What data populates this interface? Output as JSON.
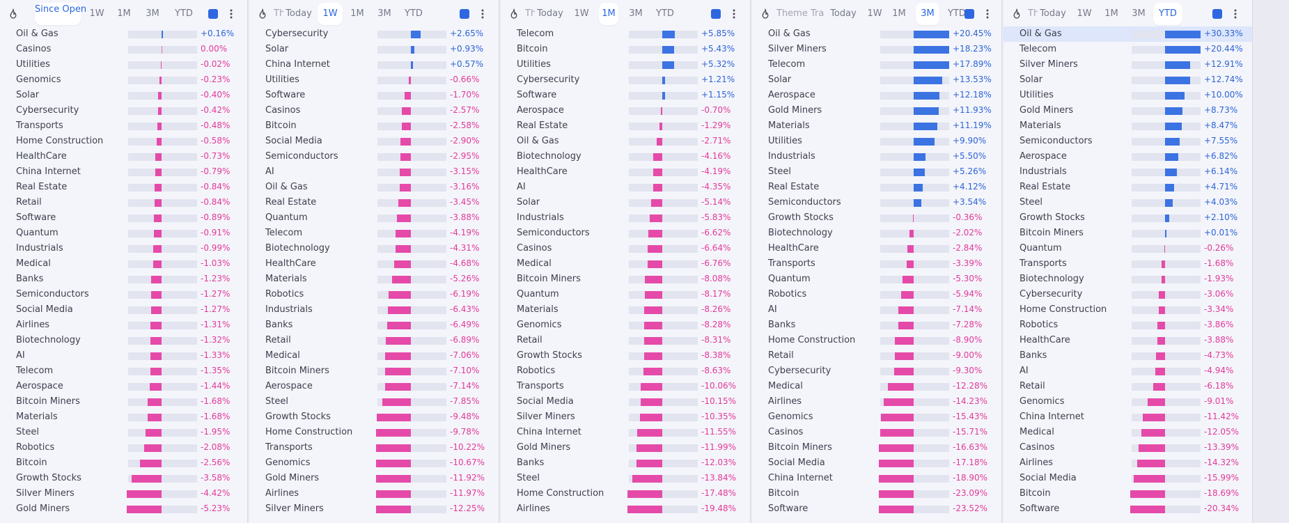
{
  "colors": {
    "positive": "#3b73e2",
    "negative": "#e54aa9",
    "accent": "#2e67e0"
  },
  "panels": [
    {
      "title": "",
      "active": "Since Open",
      "tabs": [
        "Since Open",
        "1W",
        "1M",
        "3M",
        "YTD"
      ],
      "rows": [
        [
          "Oil & Gas",
          0.16
        ],
        [
          "Casinos",
          0.0
        ],
        [
          "Utilities",
          -0.02
        ],
        [
          "Genomics",
          -0.23
        ],
        [
          "Solar",
          -0.4
        ],
        [
          "Cybersecurity",
          -0.42
        ],
        [
          "Transports",
          -0.48
        ],
        [
          "Home Construction",
          -0.58
        ],
        [
          "HealthCare",
          -0.73
        ],
        [
          "China Internet",
          -0.79
        ],
        [
          "Real Estate",
          -0.84
        ],
        [
          "Retail",
          -0.84
        ],
        [
          "Software",
          -0.89
        ],
        [
          "Quantum",
          -0.91
        ],
        [
          "Industrials",
          -0.99
        ],
        [
          "Medical",
          -1.03
        ],
        [
          "Banks",
          -1.23
        ],
        [
          "Semiconductors",
          -1.27
        ],
        [
          "Social Media",
          -1.27
        ],
        [
          "Airlines",
          -1.31
        ],
        [
          "Biotechnology",
          -1.32
        ],
        [
          "AI",
          -1.33
        ],
        [
          "Telecom",
          -1.35
        ],
        [
          "Aerospace",
          -1.44
        ],
        [
          "Bitcoin Miners",
          -1.68
        ],
        [
          "Materials",
          -1.68
        ],
        [
          "Steel",
          -1.95
        ],
        [
          "Robotics",
          -2.08
        ],
        [
          "Bitcoin",
          -2.56
        ],
        [
          "Growth Stocks",
          -3.58
        ],
        [
          "Silver Miners",
          -4.42
        ],
        [
          "Gold Miners",
          -5.23
        ]
      ]
    },
    {
      "title": "Th",
      "active": "1W",
      "tabs": [
        "Today",
        "1W",
        "1M",
        "3M",
        "YTD"
      ],
      "rows": [
        [
          "Cybersecurity",
          2.65
        ],
        [
          "Solar",
          0.93
        ],
        [
          "China Internet",
          0.57
        ],
        [
          "Utilities",
          -0.66
        ],
        [
          "Software",
          -1.7
        ],
        [
          "Casinos",
          -2.57
        ],
        [
          "Bitcoin",
          -2.58
        ],
        [
          "Social Media",
          -2.9
        ],
        [
          "Semiconductors",
          -2.95
        ],
        [
          "AI",
          -3.15
        ],
        [
          "Oil & Gas",
          -3.16
        ],
        [
          "Real Estate",
          -3.45
        ],
        [
          "Quantum",
          -3.88
        ],
        [
          "Telecom",
          -4.19
        ],
        [
          "Biotechnology",
          -4.31
        ],
        [
          "HealthCare",
          -4.68
        ],
        [
          "Materials",
          -5.26
        ],
        [
          "Robotics",
          -6.19
        ],
        [
          "Industrials",
          -6.43
        ],
        [
          "Banks",
          -6.49
        ],
        [
          "Retail",
          -6.89
        ],
        [
          "Medical",
          -7.06
        ],
        [
          "Bitcoin Miners",
          -7.1
        ],
        [
          "Aerospace",
          -7.14
        ],
        [
          "Steel",
          -7.85
        ],
        [
          "Growth Stocks",
          -9.48
        ],
        [
          "Home Construction",
          -9.78
        ],
        [
          "Transports",
          -10.22
        ],
        [
          "Genomics",
          -10.67
        ],
        [
          "Gold Miners",
          -11.92
        ],
        [
          "Airlines",
          -11.97
        ],
        [
          "Silver Miners",
          -12.25
        ]
      ]
    },
    {
      "title": "Th",
      "active": "1M",
      "tabs": [
        "Today",
        "1W",
        "1M",
        "3M",
        "YTD"
      ],
      "rows": [
        [
          "Telecom",
          5.85
        ],
        [
          "Bitcoin",
          5.43
        ],
        [
          "Utilities",
          5.32
        ],
        [
          "Cybersecurity",
          1.21
        ],
        [
          "Software",
          1.15
        ],
        [
          "Aerospace",
          -0.7
        ],
        [
          "Real Estate",
          -1.29
        ],
        [
          "Oil & Gas",
          -2.71
        ],
        [
          "Biotechnology",
          -4.16
        ],
        [
          "HealthCare",
          -4.19
        ],
        [
          "AI",
          -4.35
        ],
        [
          "Solar",
          -5.14
        ],
        [
          "Industrials",
          -5.83
        ],
        [
          "Semiconductors",
          -6.62
        ],
        [
          "Casinos",
          -6.64
        ],
        [
          "Medical",
          -6.76
        ],
        [
          "Bitcoin Miners",
          -8.08
        ],
        [
          "Quantum",
          -8.17
        ],
        [
          "Materials",
          -8.26
        ],
        [
          "Genomics",
          -8.28
        ],
        [
          "Retail",
          -8.31
        ],
        [
          "Growth Stocks",
          -8.38
        ],
        [
          "Robotics",
          -8.63
        ],
        [
          "Transports",
          -10.06
        ],
        [
          "Social Media",
          -10.15
        ],
        [
          "Silver Miners",
          -10.35
        ],
        [
          "China Internet",
          -11.55
        ],
        [
          "Gold Miners",
          -11.99
        ],
        [
          "Banks",
          -12.03
        ],
        [
          "Steel",
          -13.84
        ],
        [
          "Home Construction",
          -17.48
        ],
        [
          "Airlines",
          -19.48
        ]
      ]
    },
    {
      "title": "Theme Tra",
      "active": "3M",
      "tabs": [
        "Today",
        "1W",
        "1M",
        "3M",
        "YTD"
      ],
      "rows": [
        [
          "Oil & Gas",
          20.45
        ],
        [
          "Silver Miners",
          18.23
        ],
        [
          "Telecom",
          17.89
        ],
        [
          "Solar",
          13.53
        ],
        [
          "Aerospace",
          12.18
        ],
        [
          "Gold Miners",
          11.93
        ],
        [
          "Materials",
          11.19
        ],
        [
          "Utilities",
          9.9
        ],
        [
          "Industrials",
          5.5
        ],
        [
          "Steel",
          5.26
        ],
        [
          "Real Estate",
          4.12
        ],
        [
          "Semiconductors",
          3.54
        ],
        [
          "Growth Stocks",
          -0.36
        ],
        [
          "Biotechnology",
          -2.02
        ],
        [
          "HealthCare",
          -2.84
        ],
        [
          "Transports",
          -3.39
        ],
        [
          "Quantum",
          -5.3
        ],
        [
          "Robotics",
          -5.94
        ],
        [
          "AI",
          -7.14
        ],
        [
          "Banks",
          -7.28
        ],
        [
          "Home Construction",
          -8.9
        ],
        [
          "Retail",
          -9.0
        ],
        [
          "Cybersecurity",
          -9.3
        ],
        [
          "Medical",
          -12.28
        ],
        [
          "Airlines",
          -14.23
        ],
        [
          "Genomics",
          -15.43
        ],
        [
          "Casinos",
          -15.71
        ],
        [
          "Bitcoin Miners",
          -16.63
        ],
        [
          "Social Media",
          -17.18
        ],
        [
          "China Internet",
          -18.9
        ],
        [
          "Bitcoin",
          -23.09
        ],
        [
          "Software",
          -23.52
        ]
      ]
    },
    {
      "title": "Th",
      "active": "YTD",
      "tabs": [
        "Today",
        "1W",
        "1M",
        "3M",
        "YTD"
      ],
      "rows": [
        [
          "Oil & Gas",
          30.33
        ],
        [
          "Telecom",
          20.44
        ],
        [
          "Silver Miners",
          12.91
        ],
        [
          "Solar",
          12.74
        ],
        [
          "Utilities",
          10.0
        ],
        [
          "Gold Miners",
          8.73
        ],
        [
          "Materials",
          8.47
        ],
        [
          "Semiconductors",
          7.55
        ],
        [
          "Aerospace",
          6.82
        ],
        [
          "Industrials",
          6.14
        ],
        [
          "Real Estate",
          4.71
        ],
        [
          "Steel",
          4.03
        ],
        [
          "Growth Stocks",
          2.1
        ],
        [
          "Bitcoin Miners",
          0.01
        ],
        [
          "Quantum",
          -0.26
        ],
        [
          "Transports",
          -1.68
        ],
        [
          "Biotechnology",
          -1.93
        ],
        [
          "Cybersecurity",
          -3.06
        ],
        [
          "Home Construction",
          -3.34
        ],
        [
          "Robotics",
          -3.86
        ],
        [
          "HealthCare",
          -3.88
        ],
        [
          "Banks",
          -4.73
        ],
        [
          "AI",
          -4.94
        ],
        [
          "Retail",
          -6.18
        ],
        [
          "Genomics",
          -9.01
        ],
        [
          "China Internet",
          -11.42
        ],
        [
          "Medical",
          -12.05
        ],
        [
          "Casinos",
          -13.39
        ],
        [
          "Airlines",
          -14.32
        ],
        [
          "Social Media",
          -15.99
        ],
        [
          "Bitcoin",
          -18.69
        ],
        [
          "Software",
          -20.34
        ]
      ]
    }
  ]
}
